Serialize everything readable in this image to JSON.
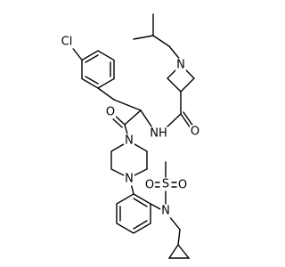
{
  "atoms": [
    "Cl",
    "N",
    "O",
    "NH",
    "O",
    "N",
    "N",
    "S",
    "O",
    "O",
    "N"
  ]
}
